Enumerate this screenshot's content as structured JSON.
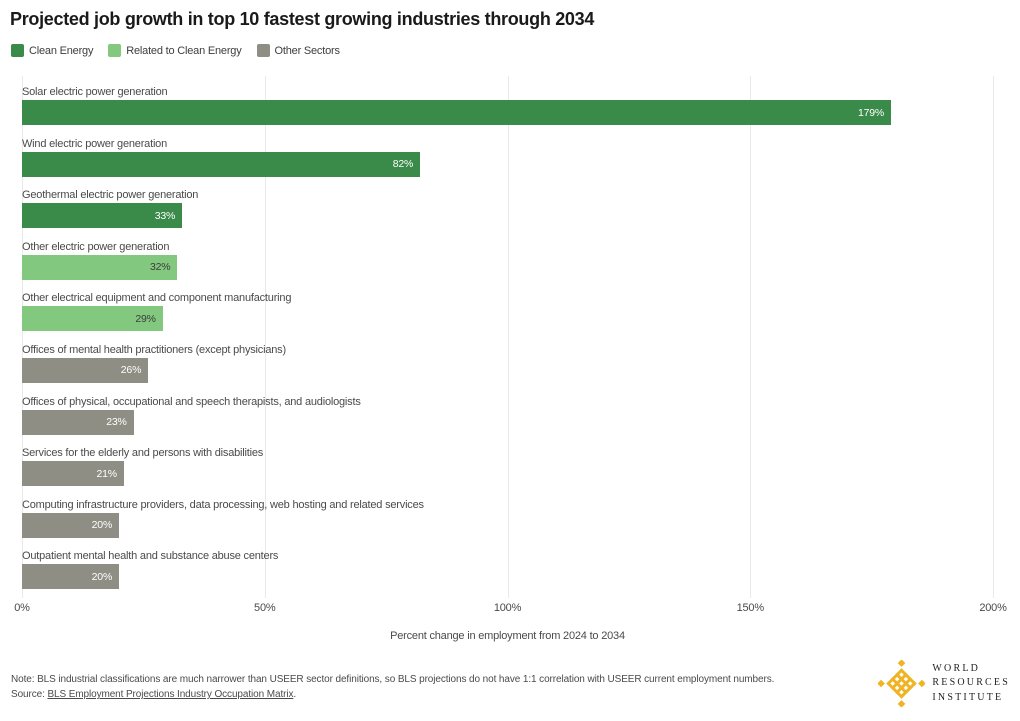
{
  "title": "Projected job growth in top 10 fastest growing industries through 2034",
  "legend": [
    {
      "label": "Clean Energy",
      "color": "#3A8A4A"
    },
    {
      "label": "Related to Clean Energy",
      "color": "#82C87E"
    },
    {
      "label": "Other Sectors",
      "color": "#8E8E85"
    }
  ],
  "chart_data": {
    "type": "bar",
    "orientation": "horizontal",
    "title": "Projected job growth in top 10 fastest growing industries through 2034",
    "categories": [
      "Solar electric power generation",
      "Wind electric power generation",
      "Geothermal electric power generation",
      "Other electric power generation",
      "Other electrical equipment and component manufacturing",
      "Offices of mental health practitioners (except physicians)",
      "Offices of physical, occupational and speech therapists, and audiologists",
      "Services for the elderly and persons with disabilities",
      "Computing infrastructure providers, data processing, web hosting and related services",
      "Outpatient mental health and substance abuse centers"
    ],
    "values": [
      179,
      82,
      33,
      32,
      29,
      26,
      23,
      21,
      20,
      20
    ],
    "bar_labels": [
      "179%",
      "82%",
      "33%",
      "32%",
      "29%",
      "26%",
      "23%",
      "21%",
      "20%",
      "20%"
    ],
    "series_by_bar": [
      "Clean Energy",
      "Clean Energy",
      "Clean Energy",
      "Related to Clean Energy",
      "Related to Clean Energy",
      "Other Sectors",
      "Other Sectors",
      "Other Sectors",
      "Other Sectors",
      "Other Sectors"
    ],
    "colors": {
      "Clean Energy": "#3A8A4A",
      "Related to Clean Energy": "#82C87E",
      "Other Sectors": "#8E8E85"
    },
    "value_label_colors": {
      "Clean Energy": "#FFFFFF",
      "Related to Clean Energy": "#3D3D3D",
      "Other Sectors": "#FFFFFF"
    },
    "xlabel": "Percent change in employment from 2024 to 2034",
    "xlim": [
      0,
      200
    ],
    "x_ticks": [
      "0%",
      "50%",
      "100%",
      "150%",
      "200%"
    ],
    "x_tick_values": [
      0,
      50,
      100,
      150,
      200
    ],
    "grid": "vertical",
    "legend_position": "top-left"
  },
  "footer": {
    "note": "Note: BLS industrial classifications are much narrower than USEER sector definitions, so BLS projections do not have 1:1 correlation with USEER current employment numbers.",
    "source_prefix": "Source: ",
    "source_link": "BLS Employment Projections Industry Occupation Matrix",
    "source_suffix": "."
  },
  "logo": {
    "color": "#F0B323",
    "lines": [
      "WORLD",
      "RESOURCES",
      "INSTITUTE"
    ]
  }
}
